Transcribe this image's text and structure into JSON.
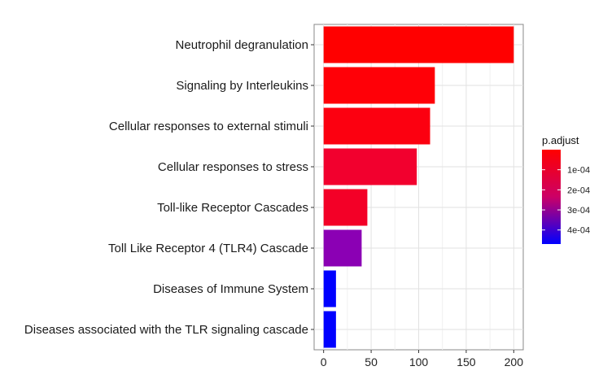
{
  "chart_data": {
    "type": "bar",
    "orientation": "horizontal",
    "title": "",
    "xlabel": "",
    "ylabel": "",
    "categories": [
      "Neutrophil degranulation",
      "Signaling by Interleukins",
      "Cellular responses to external stimuli",
      "Cellular responses to stress",
      "Toll-like Receptor Cascades",
      "Toll Like Receptor 4 (TLR4) Cascade",
      "Diseases of Immune System",
      "Diseases associated with the TLR signaling cascade"
    ],
    "values": [
      200,
      117,
      112,
      98,
      46,
      40,
      13,
      13
    ],
    "p_adjust": [
      1e-06,
      5e-06,
      1.2e-05,
      6.5e-05,
      6e-05,
      0.000275,
      0.00045,
      0.00045
    ],
    "bar_colors": [
      "#FF0000",
      "#FF0007",
      "#FC0010",
      "#F2002E",
      "#F30027",
      "#8B00B4",
      "#0000FF",
      "#0000FF"
    ],
    "xlim": [
      -10,
      210
    ],
    "x_ticks": [
      0,
      50,
      100,
      150,
      200
    ],
    "x_tick_labels": [
      "0",
      "50",
      "100",
      "150",
      "200"
    ],
    "grid": true,
    "legend": {
      "title": "p.adjust",
      "placement": "right",
      "range": [
        0,
        0.00047
      ],
      "color_low": "#FF0000",
      "color_high": "#0000FF",
      "ticks": [
        0.0001,
        0.0002,
        0.0003,
        0.0004
      ],
      "tick_labels": [
        "1e-04",
        "2e-04",
        "3e-04",
        "4e-04"
      ]
    }
  }
}
